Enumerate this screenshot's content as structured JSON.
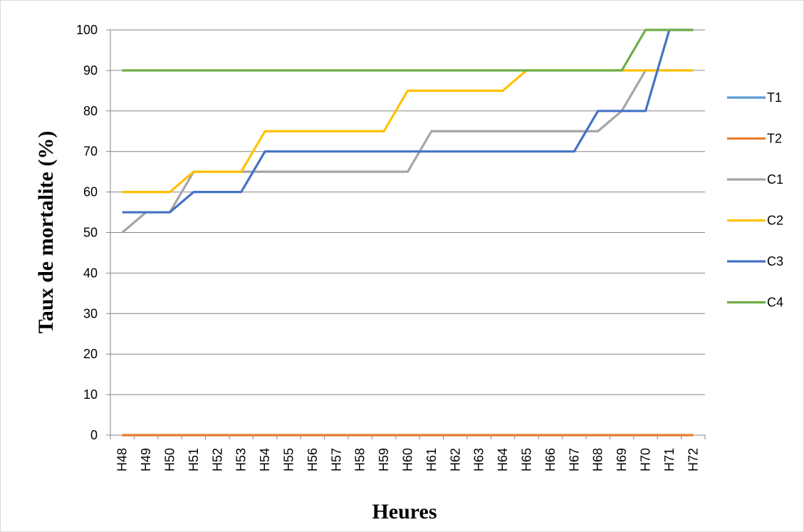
{
  "chart_data": {
    "type": "line",
    "xlabel": "Heures",
    "ylabel": "Taux de mortalite (%)",
    "ylim": [
      0,
      100
    ],
    "yticks": [
      0,
      10,
      20,
      30,
      40,
      50,
      60,
      70,
      80,
      90,
      100
    ],
    "grid": "horizontal",
    "legend": "right",
    "categories": [
      "H48",
      "H49",
      "H50",
      "H51",
      "H52",
      "H53",
      "H54",
      "H55",
      "H56",
      "H57",
      "H58",
      "H59",
      "H60",
      "H61",
      "H62",
      "H63",
      "H64",
      "H65",
      "H66",
      "H67",
      "H68",
      "H69",
      "H70",
      "H71",
      "H72"
    ],
    "series": [
      {
        "name": "T1",
        "color": "#5b9bd5",
        "values": [
          0,
          0,
          0,
          0,
          0,
          0,
          0,
          0,
          0,
          0,
          0,
          0,
          0,
          0,
          0,
          0,
          0,
          0,
          0,
          0,
          0,
          0,
          0,
          0,
          0
        ]
      },
      {
        "name": "T2",
        "color": "#ed7d31",
        "values": [
          0,
          0,
          0,
          0,
          0,
          0,
          0,
          0,
          0,
          0,
          0,
          0,
          0,
          0,
          0,
          0,
          0,
          0,
          0,
          0,
          0,
          0,
          0,
          0,
          0
        ]
      },
      {
        "name": "C1",
        "color": "#a5a5a5",
        "values": [
          50,
          55,
          55,
          65,
          65,
          65,
          65,
          65,
          65,
          65,
          65,
          65,
          65,
          75,
          75,
          75,
          75,
          75,
          75,
          75,
          75,
          80,
          90,
          90,
          90
        ]
      },
      {
        "name": "C2",
        "color": "#ffc000",
        "values": [
          60,
          60,
          60,
          65,
          65,
          65,
          75,
          75,
          75,
          75,
          75,
          75,
          85,
          85,
          85,
          85,
          85,
          90,
          90,
          90,
          90,
          90,
          90,
          90,
          90
        ]
      },
      {
        "name": "C3",
        "color": "#4472c4",
        "values": [
          55,
          55,
          55,
          60,
          60,
          60,
          70,
          70,
          70,
          70,
          70,
          70,
          70,
          70,
          70,
          70,
          70,
          70,
          70,
          70,
          80,
          80,
          80,
          100,
          100
        ]
      },
      {
        "name": "C4",
        "color": "#70ad47",
        "values": [
          90,
          90,
          90,
          90,
          90,
          90,
          90,
          90,
          90,
          90,
          90,
          90,
          90,
          90,
          90,
          90,
          90,
          90,
          90,
          90,
          90,
          90,
          100,
          100,
          100
        ]
      }
    ]
  }
}
